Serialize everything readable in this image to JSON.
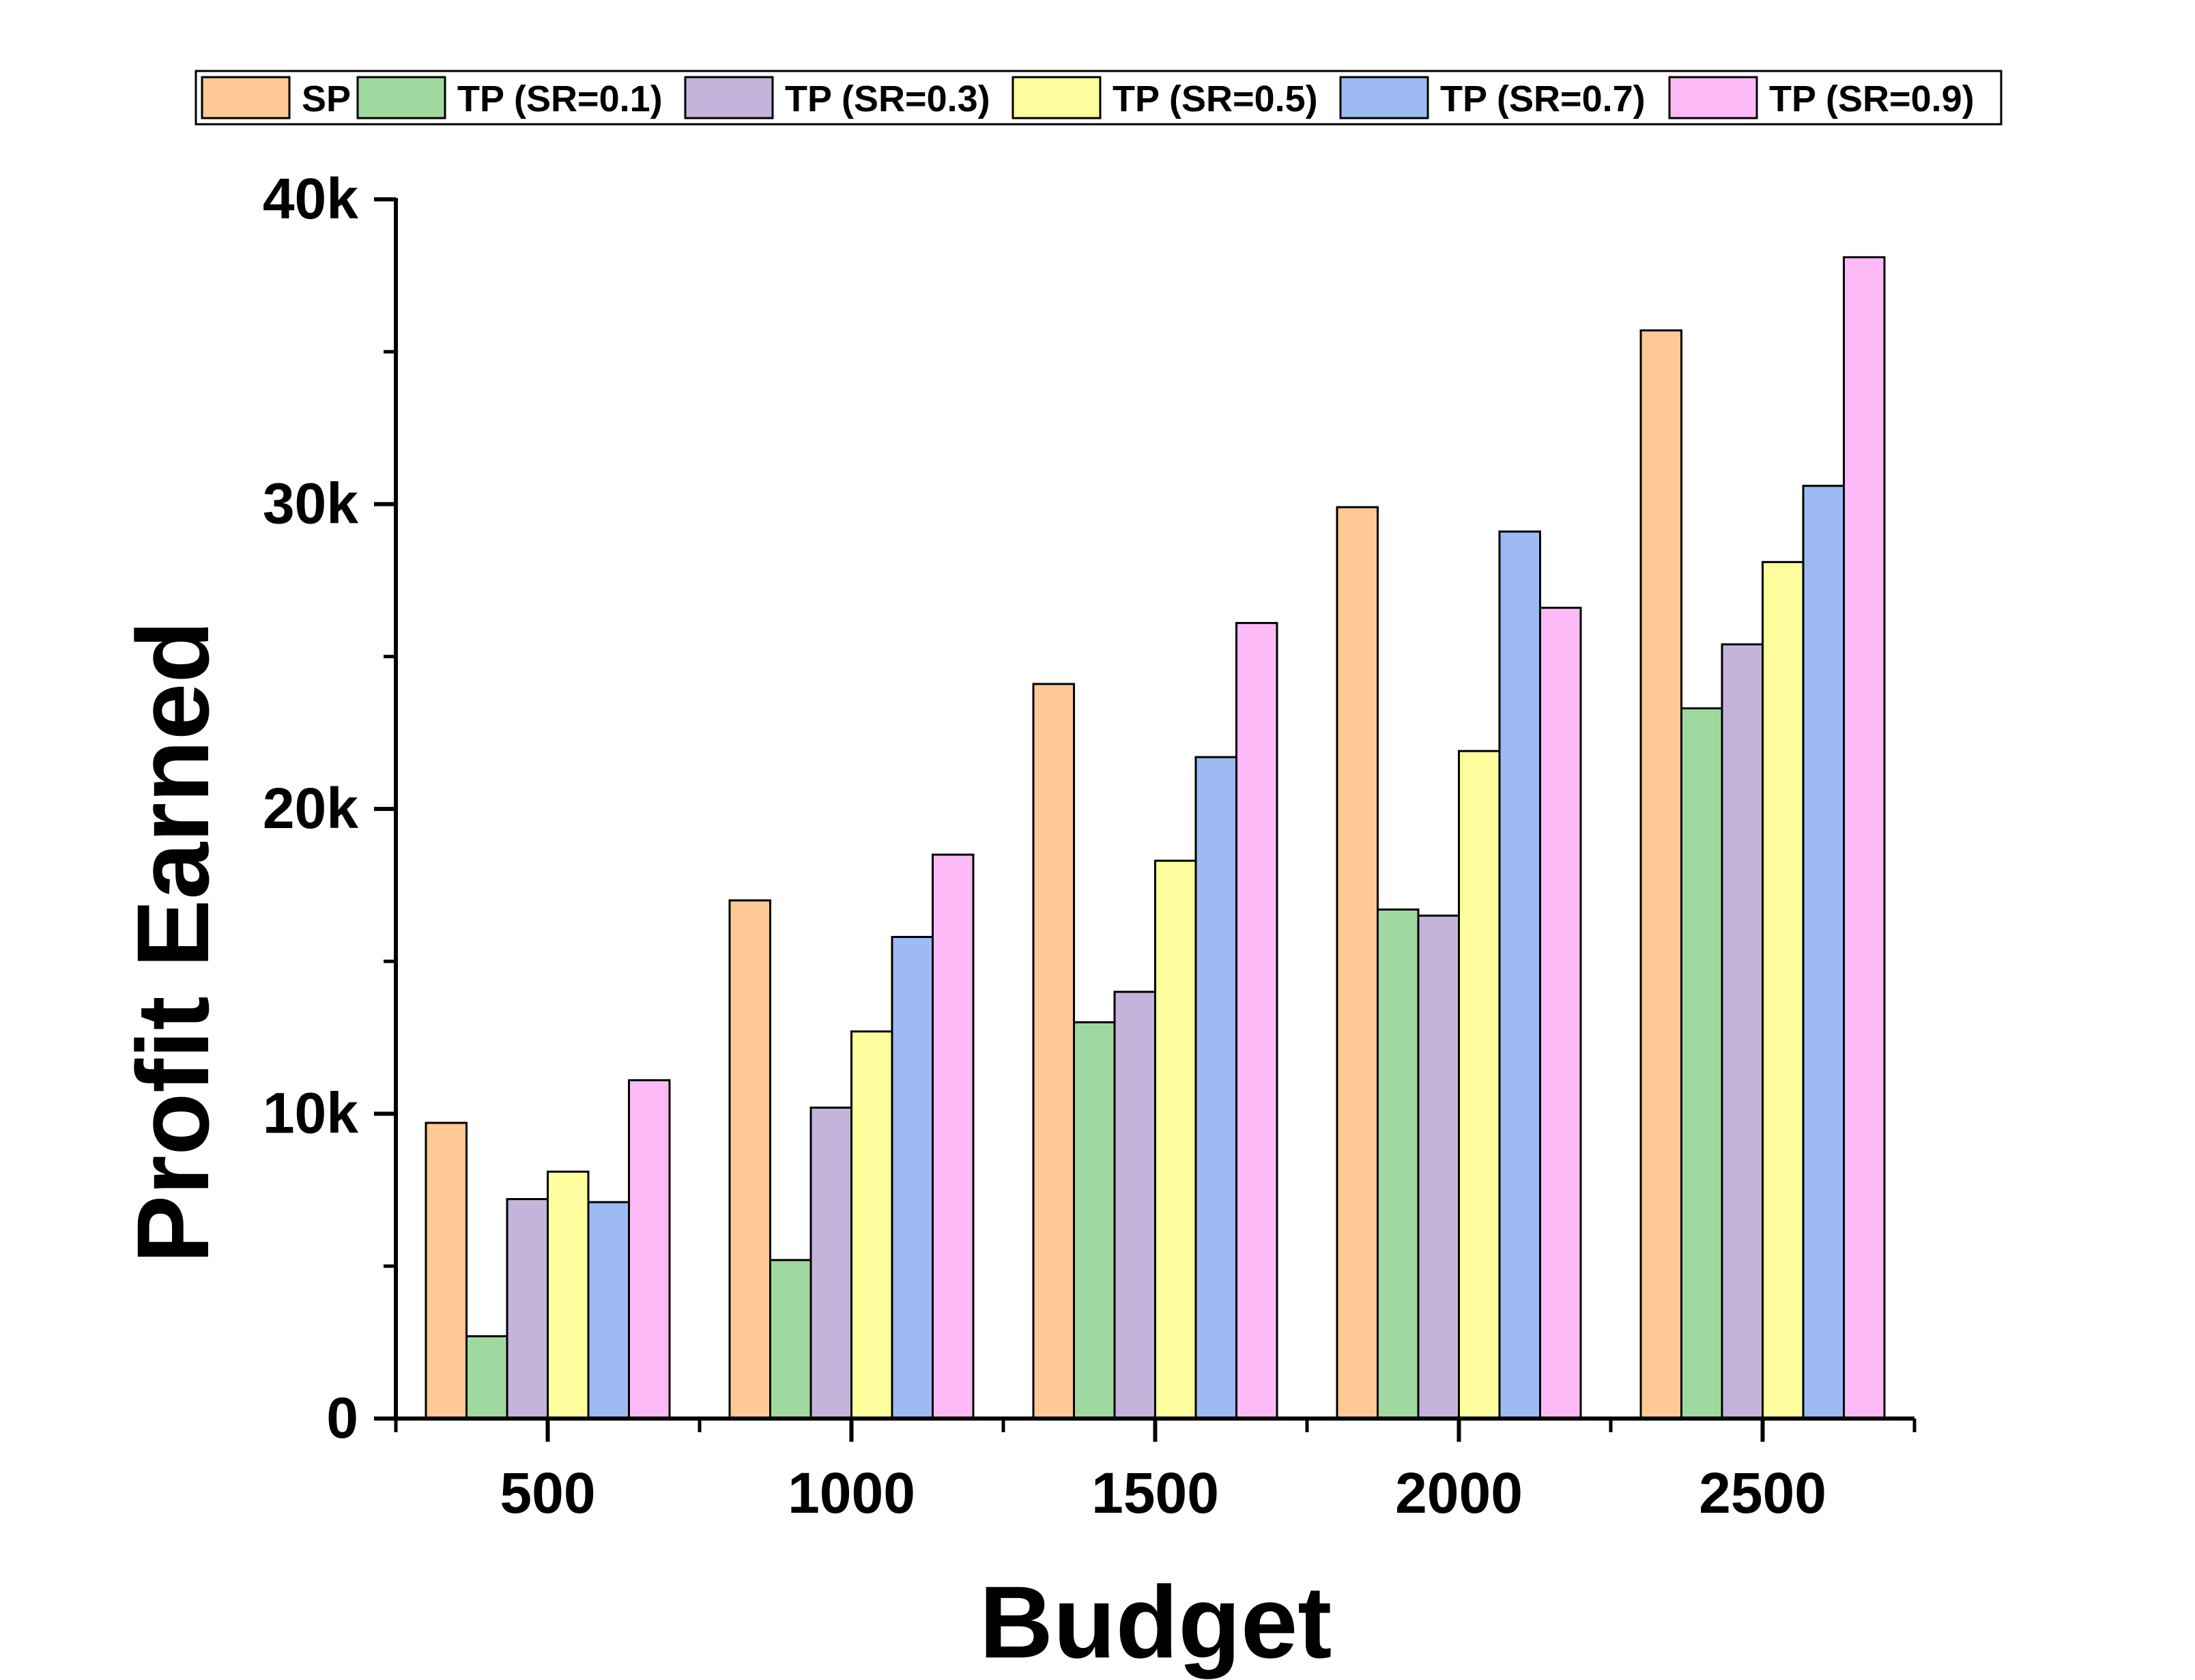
{
  "chart_data": {
    "type": "bar",
    "title": "",
    "xlabel": "Budget",
    "ylabel": "Profit Earned",
    "categories": [
      "500",
      "1000",
      "1500",
      "2000",
      "2500"
    ],
    "ylim": [
      0,
      40000
    ],
    "yticks": [
      0,
      10000,
      20000,
      30000,
      40000
    ],
    "ytick_labels": [
      "0",
      "10k",
      "20k",
      "30k",
      "40k"
    ],
    "grid": false,
    "legend_position": "top",
    "series": [
      {
        "name": "SP",
        "color": "#FEC994",
        "values": [
          9700,
          17000,
          24100,
          29900,
          35700
        ]
      },
      {
        "name": "TP (SR=0.1)",
        "color": "#A0D99F",
        "values": [
          2700,
          5200,
          13000,
          16700,
          23300
        ]
      },
      {
        "name": "TP (SR=0.3)",
        "color": "#C4B3DA",
        "values": [
          7200,
          10200,
          14000,
          16500,
          25400
        ]
      },
      {
        "name": "TP (SR=0.5)",
        "color": "#FEFE9E",
        "values": [
          8100,
          12700,
          18300,
          21900,
          28100
        ]
      },
      {
        "name": "TP (SR=0.7)",
        "color": "#9DBBF2",
        "values": [
          7100,
          15800,
          21700,
          29100,
          30600
        ]
      },
      {
        "name": "TP (SR=0.9)",
        "color": "#FDBAF6",
        "values": [
          11100,
          18500,
          26100,
          26600,
          38100
        ]
      }
    ]
  }
}
